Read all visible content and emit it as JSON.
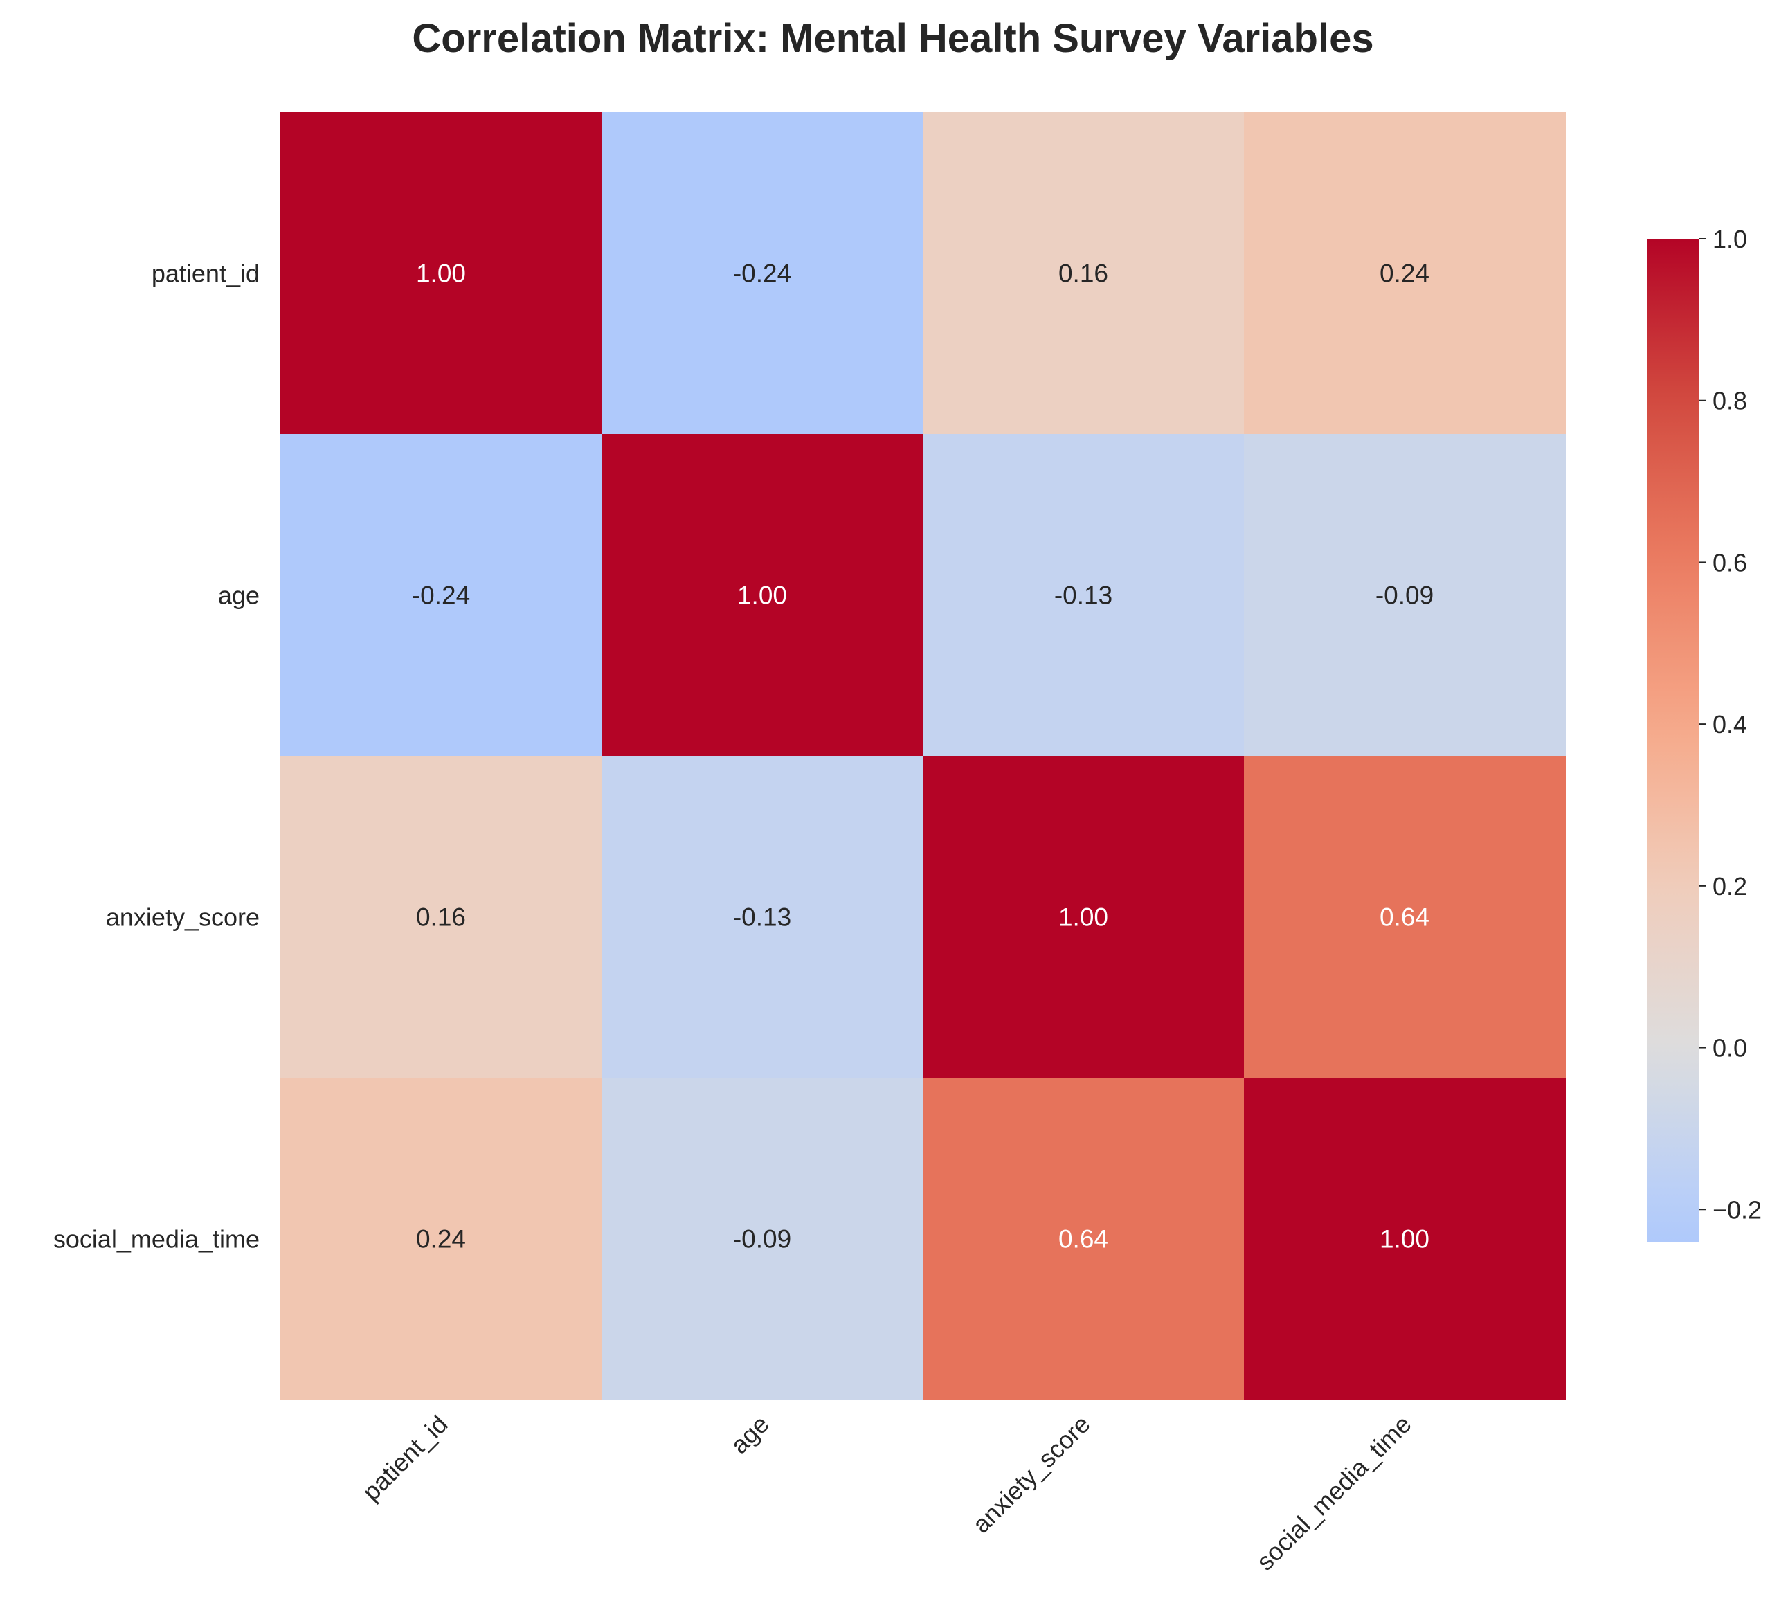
{
  "chart_data": {
    "type": "heatmap",
    "title": "Correlation Matrix: Mental Health Survey Variables",
    "row_labels": [
      "patient_id",
      "age",
      "anxiety_score",
      "social_media_time"
    ],
    "col_labels": [
      "patient_id",
      "age",
      "anxiety_score",
      "social_media_time"
    ],
    "values": [
      [
        1.0,
        -0.24,
        0.16,
        0.24
      ],
      [
        -0.24,
        1.0,
        -0.13,
        -0.09
      ],
      [
        0.16,
        -0.13,
        1.0,
        0.64
      ],
      [
        0.24,
        -0.09,
        0.64,
        1.0
      ]
    ],
    "value_format": "2 decimals",
    "colormap": "coolwarm",
    "color_range": [
      -0.24,
      1.0
    ],
    "center": 0,
    "colorbar": {
      "ticks": [
        -0.2,
        0.0,
        0.2,
        0.4,
        0.6,
        0.8,
        1.0
      ],
      "tick_labels": [
        "−0.2",
        "0.0",
        "0.2",
        "0.4",
        "0.6",
        "0.8",
        "1.0"
      ],
      "placement": "right"
    },
    "grid": false
  }
}
